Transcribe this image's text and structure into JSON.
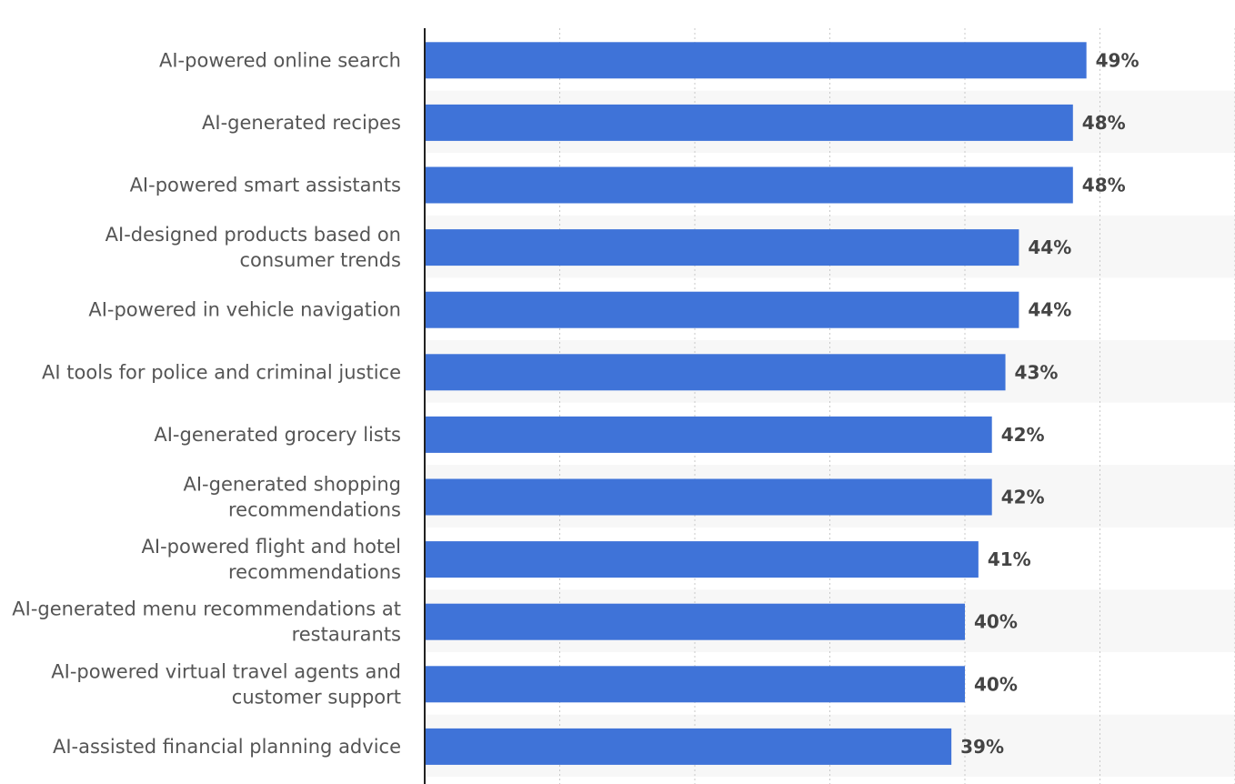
{
  "chart_data": {
    "type": "bar",
    "orientation": "horizontal",
    "categories": [
      "AI-powered online search",
      "AI-generated recipes",
      "AI-powered smart assistants",
      "AI-designed products based on consumer trends",
      "AI-powered in vehicle navigation",
      "AI tools for police and criminal justice",
      "AI-generated grocery lists",
      "AI-generated shopping recommendations",
      "AI-powered flight and hotel recommendations",
      "AI-generated menu recommendations at restaurants",
      "AI-powered virtual travel agents and customer support",
      "AI-assisted financial planning advice"
    ],
    "category_lines": [
      [
        "AI-powered online search"
      ],
      [
        "AI-generated recipes"
      ],
      [
        "AI-powered smart assistants"
      ],
      [
        "AI-designed products based on",
        "consumer trends"
      ],
      [
        "AI-powered in vehicle navigation"
      ],
      [
        "AI tools for police and criminal justice"
      ],
      [
        "AI-generated grocery lists"
      ],
      [
        "AI-generated shopping",
        "recommendations"
      ],
      [
        "AI-powered flight and hotel",
        "recommendations"
      ],
      [
        "AI-generated menu recommendations at",
        "restaurants"
      ],
      [
        "AI-powered virtual travel agents and",
        "customer support"
      ],
      [
        "AI-assisted financial planning advice"
      ]
    ],
    "values": [
      49,
      48,
      48,
      44,
      44,
      43,
      42,
      42,
      41,
      40,
      40,
      39
    ],
    "value_labels": [
      "49%",
      "48%",
      "48%",
      "44%",
      "44%",
      "43%",
      "42%",
      "42%",
      "41%",
      "40%",
      "40%",
      "39%"
    ],
    "xlim": [
      0,
      60
    ],
    "grid": true,
    "bar_color": "#3f73d8",
    "band_color": "#f7f7f7",
    "label_color": "#555555",
    "value_color": "#444444"
  }
}
